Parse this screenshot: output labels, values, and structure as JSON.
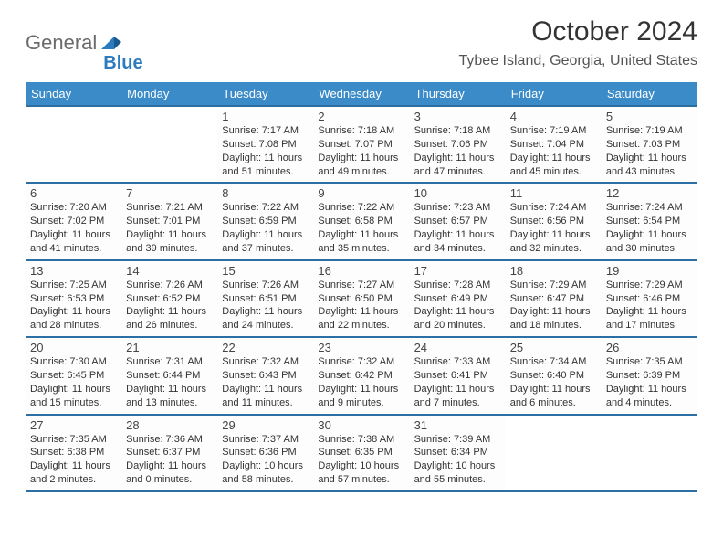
{
  "logo": {
    "text1": "General",
    "text2": "Blue"
  },
  "title": "October 2024",
  "location": "Tybee Island, Georgia, United States",
  "colors": {
    "header_bg": "#3b8bc9",
    "header_text": "#ffffff",
    "cell_border_top": "#2d6ea3",
    "cell_border_bottom": "#c8c8c8",
    "logo_gray": "#6b6b6b",
    "logo_blue": "#2d7bbf",
    "body_text": "#333333"
  },
  "weekdays": [
    "Sunday",
    "Monday",
    "Tuesday",
    "Wednesday",
    "Thursday",
    "Friday",
    "Saturday"
  ],
  "layout": {
    "leading_blanks": 2,
    "rows": 5,
    "cols": 7
  },
  "days": [
    {
      "n": 1,
      "sunrise": "7:17 AM",
      "sunset": "7:08 PM",
      "daylight": "11 hours and 51 minutes."
    },
    {
      "n": 2,
      "sunrise": "7:18 AM",
      "sunset": "7:07 PM",
      "daylight": "11 hours and 49 minutes."
    },
    {
      "n": 3,
      "sunrise": "7:18 AM",
      "sunset": "7:06 PM",
      "daylight": "11 hours and 47 minutes."
    },
    {
      "n": 4,
      "sunrise": "7:19 AM",
      "sunset": "7:04 PM",
      "daylight": "11 hours and 45 minutes."
    },
    {
      "n": 5,
      "sunrise": "7:19 AM",
      "sunset": "7:03 PM",
      "daylight": "11 hours and 43 minutes."
    },
    {
      "n": 6,
      "sunrise": "7:20 AM",
      "sunset": "7:02 PM",
      "daylight": "11 hours and 41 minutes."
    },
    {
      "n": 7,
      "sunrise": "7:21 AM",
      "sunset": "7:01 PM",
      "daylight": "11 hours and 39 minutes."
    },
    {
      "n": 8,
      "sunrise": "7:22 AM",
      "sunset": "6:59 PM",
      "daylight": "11 hours and 37 minutes."
    },
    {
      "n": 9,
      "sunrise": "7:22 AM",
      "sunset": "6:58 PM",
      "daylight": "11 hours and 35 minutes."
    },
    {
      "n": 10,
      "sunrise": "7:23 AM",
      "sunset": "6:57 PM",
      "daylight": "11 hours and 34 minutes."
    },
    {
      "n": 11,
      "sunrise": "7:24 AM",
      "sunset": "6:56 PM",
      "daylight": "11 hours and 32 minutes."
    },
    {
      "n": 12,
      "sunrise": "7:24 AM",
      "sunset": "6:54 PM",
      "daylight": "11 hours and 30 minutes."
    },
    {
      "n": 13,
      "sunrise": "7:25 AM",
      "sunset": "6:53 PM",
      "daylight": "11 hours and 28 minutes."
    },
    {
      "n": 14,
      "sunrise": "7:26 AM",
      "sunset": "6:52 PM",
      "daylight": "11 hours and 26 minutes."
    },
    {
      "n": 15,
      "sunrise": "7:26 AM",
      "sunset": "6:51 PM",
      "daylight": "11 hours and 24 minutes."
    },
    {
      "n": 16,
      "sunrise": "7:27 AM",
      "sunset": "6:50 PM",
      "daylight": "11 hours and 22 minutes."
    },
    {
      "n": 17,
      "sunrise": "7:28 AM",
      "sunset": "6:49 PM",
      "daylight": "11 hours and 20 minutes."
    },
    {
      "n": 18,
      "sunrise": "7:29 AM",
      "sunset": "6:47 PM",
      "daylight": "11 hours and 18 minutes."
    },
    {
      "n": 19,
      "sunrise": "7:29 AM",
      "sunset": "6:46 PM",
      "daylight": "11 hours and 17 minutes."
    },
    {
      "n": 20,
      "sunrise": "7:30 AM",
      "sunset": "6:45 PM",
      "daylight": "11 hours and 15 minutes."
    },
    {
      "n": 21,
      "sunrise": "7:31 AM",
      "sunset": "6:44 PM",
      "daylight": "11 hours and 13 minutes."
    },
    {
      "n": 22,
      "sunrise": "7:32 AM",
      "sunset": "6:43 PM",
      "daylight": "11 hours and 11 minutes."
    },
    {
      "n": 23,
      "sunrise": "7:32 AM",
      "sunset": "6:42 PM",
      "daylight": "11 hours and 9 minutes."
    },
    {
      "n": 24,
      "sunrise": "7:33 AM",
      "sunset": "6:41 PM",
      "daylight": "11 hours and 7 minutes."
    },
    {
      "n": 25,
      "sunrise": "7:34 AM",
      "sunset": "6:40 PM",
      "daylight": "11 hours and 6 minutes."
    },
    {
      "n": 26,
      "sunrise": "7:35 AM",
      "sunset": "6:39 PM",
      "daylight": "11 hours and 4 minutes."
    },
    {
      "n": 27,
      "sunrise": "7:35 AM",
      "sunset": "6:38 PM",
      "daylight": "11 hours and 2 minutes."
    },
    {
      "n": 28,
      "sunrise": "7:36 AM",
      "sunset": "6:37 PM",
      "daylight": "11 hours and 0 minutes."
    },
    {
      "n": 29,
      "sunrise": "7:37 AM",
      "sunset": "6:36 PM",
      "daylight": "10 hours and 58 minutes."
    },
    {
      "n": 30,
      "sunrise": "7:38 AM",
      "sunset": "6:35 PM",
      "daylight": "10 hours and 57 minutes."
    },
    {
      "n": 31,
      "sunrise": "7:39 AM",
      "sunset": "6:34 PM",
      "daylight": "10 hours and 55 minutes."
    }
  ],
  "labels": {
    "sunrise": "Sunrise:",
    "sunset": "Sunset:",
    "daylight": "Daylight:"
  }
}
